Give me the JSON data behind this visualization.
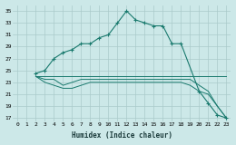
{
  "xlabel": "Humidex (Indice chaleur)",
  "bg_color": "#cce8e8",
  "line_color": "#1a7a6e",
  "grid_color": "#aacaca",
  "xlim": [
    -0.5,
    23.5
  ],
  "ylim": [
    16.5,
    36.0
  ],
  "yticks": [
    17,
    19,
    21,
    23,
    25,
    27,
    29,
    31,
    33,
    35
  ],
  "xticks": [
    0,
    1,
    2,
    3,
    4,
    5,
    6,
    7,
    8,
    9,
    10,
    11,
    12,
    13,
    14,
    15,
    16,
    17,
    18,
    19,
    20,
    21,
    22,
    23
  ],
  "series1_x": [
    2,
    3,
    4,
    5,
    6,
    7,
    8,
    9,
    10,
    11,
    12,
    13,
    14,
    15,
    16,
    17,
    18,
    20,
    21,
    22,
    23
  ],
  "series1_y": [
    24.5,
    25.0,
    27.0,
    28.0,
    28.5,
    29.5,
    29.5,
    30.5,
    31.0,
    33.0,
    35.0,
    33.5,
    33.0,
    32.5,
    32.5,
    29.5,
    29.5,
    21.5,
    19.5,
    17.5,
    17.0
  ],
  "series2_x": [
    2,
    3,
    4,
    5,
    6,
    7,
    8,
    9,
    10,
    11,
    12,
    13,
    14,
    15,
    16,
    17,
    18,
    19,
    20,
    21,
    22,
    23
  ],
  "series2_y": [
    24.0,
    24.0,
    24.0,
    24.0,
    24.0,
    24.0,
    24.0,
    24.0,
    24.0,
    24.0,
    24.0,
    24.0,
    24.0,
    24.0,
    24.0,
    24.0,
    24.0,
    24.0,
    24.0,
    24.0,
    24.0,
    24.0
  ],
  "series3_x": [
    2,
    3,
    4,
    5,
    6,
    7,
    8,
    9,
    10,
    11,
    12,
    13,
    14,
    15,
    16,
    17,
    18,
    19,
    20,
    21,
    22,
    23
  ],
  "series3_y": [
    24.0,
    23.5,
    23.5,
    22.5,
    23.0,
    23.5,
    23.5,
    23.5,
    23.5,
    23.5,
    23.5,
    23.5,
    23.5,
    23.5,
    23.5,
    23.5,
    23.5,
    23.5,
    22.5,
    21.5,
    19.0,
    17.0
  ],
  "series4_x": [
    2,
    3,
    4,
    5,
    6,
    7,
    8,
    9,
    10,
    11,
    12,
    13,
    14,
    15,
    16,
    17,
    18,
    19,
    20,
    21,
    22,
    23
  ],
  "series4_y": [
    24.0,
    23.0,
    22.5,
    22.0,
    22.0,
    22.5,
    23.0,
    23.0,
    23.0,
    23.0,
    23.0,
    23.0,
    23.0,
    23.0,
    23.0,
    23.0,
    23.0,
    22.5,
    21.5,
    21.0,
    19.0,
    17.0
  ]
}
